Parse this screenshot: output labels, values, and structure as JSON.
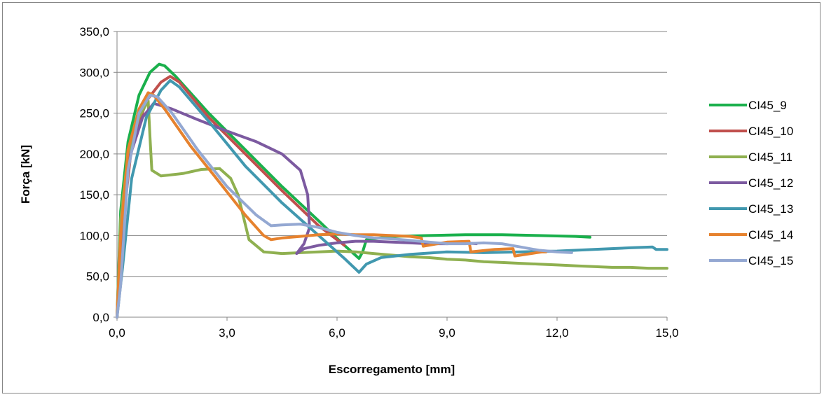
{
  "chart_data": {
    "type": "line",
    "title": "",
    "xlabel": "Escorregamento [mm]",
    "ylabel": "Força [kN]",
    "xlim": [
      0,
      15
    ],
    "ylim": [
      0,
      350
    ],
    "x_ticks": [
      "0,0",
      "3,0",
      "6,0",
      "9,0",
      "12,0",
      "15,0"
    ],
    "y_ticks": [
      "0,0",
      "50,0",
      "100,0",
      "150,0",
      "200,0",
      "250,0",
      "300,0",
      "350,0"
    ],
    "grid": "horizontal",
    "legend_position": "right",
    "series": [
      {
        "name": "CI45_9",
        "color": "#1ab04c",
        "x": [
          0.0,
          0.1,
          0.3,
          0.6,
          0.9,
          1.15,
          1.3,
          1.6,
          2.5,
          3.5,
          4.5,
          5.5,
          6.2,
          6.6,
          6.7,
          6.8,
          7.5,
          8.5,
          9.5,
          10.5,
          11.5,
          12.5,
          12.9
        ],
        "y": [
          0,
          130,
          215,
          272,
          300,
          310,
          308,
          295,
          250,
          205,
          160,
          118,
          88,
          72,
          80,
          95,
          99,
          100,
          101,
          101,
          100,
          99,
          98
        ]
      },
      {
        "name": "CI45_10",
        "color": "#c0504d",
        "x": [
          0.0,
          0.05,
          0.15,
          0.4,
          0.8,
          1.2,
          1.45,
          1.7,
          2.5,
          3.5,
          4.5,
          5.5,
          6.2
        ],
        "y": [
          0,
          25,
          110,
          210,
          265,
          288,
          295,
          288,
          245,
          200,
          155,
          112,
          88
        ]
      },
      {
        "name": "CI45_11",
        "color": "#8fb050",
        "x": [
          0.0,
          0.1,
          0.3,
          0.6,
          0.85,
          0.9,
          0.95,
          1.2,
          1.8,
          2.3,
          2.8,
          3.1,
          3.3,
          3.6,
          4.0,
          4.5,
          5.0,
          5.5,
          6.0,
          6.5,
          7.0,
          7.5,
          8.0,
          8.5,
          9.0,
          9.5,
          10.0,
          10.5,
          11.0,
          11.5,
          12.0,
          12.5,
          13.0,
          13.5,
          14.0,
          14.5,
          15.0
        ],
        "y": [
          0,
          120,
          200,
          245,
          265,
          220,
          180,
          173,
          176,
          181,
          182,
          170,
          150,
          95,
          80,
          78,
          79,
          80,
          81,
          80,
          78,
          76,
          74,
          73,
          71,
          70,
          68,
          67,
          66,
          65,
          64,
          63,
          62,
          61,
          61,
          60,
          60
        ]
      },
      {
        "name": "CI45_12",
        "color": "#7c5aa0",
        "x": [
          0.0,
          0.1,
          0.3,
          0.7,
          1.0,
          1.5,
          2.2,
          3.0,
          3.8,
          4.5,
          5.0,
          5.2,
          5.25,
          5.1,
          4.9,
          5.1,
          5.5,
          6.0,
          6.5,
          7.0,
          7.5,
          8.0,
          8.5,
          9.0,
          9.5,
          9.8
        ],
        "y": [
          0,
          100,
          190,
          245,
          262,
          255,
          242,
          228,
          215,
          200,
          180,
          150,
          110,
          90,
          78,
          84,
          88,
          91,
          93,
          93,
          92,
          91,
          90,
          90,
          91,
          90
        ]
      },
      {
        "name": "CI45_13",
        "color": "#4198af",
        "x": [
          0.0,
          0.15,
          0.4,
          0.8,
          1.2,
          1.45,
          1.7,
          2.5,
          3.5,
          4.5,
          5.5,
          6.2,
          6.6,
          6.8,
          7.2,
          8.0,
          9.0,
          10.0,
          11.0,
          12.0,
          13.0,
          14.0,
          14.6,
          14.7,
          15.0
        ],
        "y": [
          0,
          60,
          170,
          245,
          278,
          290,
          282,
          240,
          185,
          140,
          100,
          72,
          55,
          65,
          73,
          77,
          80,
          79,
          80,
          81,
          83,
          85,
          86,
          83,
          83
        ]
      },
      {
        "name": "CI45_14",
        "color": "#e6822e",
        "x": [
          0.0,
          0.1,
          0.3,
          0.6,
          0.85,
          1.0,
          1.3,
          2.0,
          2.8,
          3.5,
          4.0,
          4.2,
          4.5,
          5.0,
          5.5,
          6.0,
          6.5,
          7.0,
          7.5,
          8.0,
          8.3,
          8.35,
          9.0,
          9.6,
          9.65,
          10.3,
          10.8,
          10.85,
          11.6,
          11.7
        ],
        "y": [
          0,
          100,
          205,
          255,
          275,
          272,
          255,
          210,
          165,
          125,
          100,
          95,
          97,
          99,
          101,
          102,
          101,
          101,
          100,
          99,
          97,
          87,
          92,
          93,
          80,
          83,
          84,
          75,
          80,
          80
        ]
      },
      {
        "name": "CI45_15",
        "color": "#94a8d2",
        "x": [
          0.0,
          0.1,
          0.3,
          0.6,
          0.9,
          1.1,
          1.5,
          2.2,
          3.0,
          3.8,
          4.2,
          4.5,
          5.0,
          5.5,
          6.0,
          6.5,
          7.0,
          7.5,
          8.0,
          8.5,
          9.0,
          9.5,
          10.0,
          10.5,
          11.0,
          11.5,
          12.0,
          12.4
        ],
        "y": [
          0,
          40,
          180,
          250,
          272,
          270,
          250,
          205,
          160,
          125,
          112,
          113,
          114,
          110,
          104,
          100,
          97,
          96,
          94,
          92,
          90,
          90,
          91,
          90,
          86,
          82,
          80,
          79
        ]
      }
    ]
  }
}
